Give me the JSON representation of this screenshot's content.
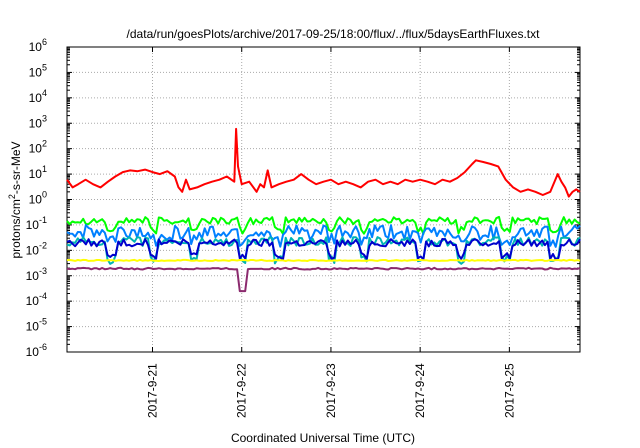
{
  "chart_data": {
    "type": "line",
    "title": "/data/run/goesPlots/archive/2017-09-25/18:00/flux/../flux/5daysEarthFluxes.txt",
    "xlabel": "Coordinated Universal Time (UTC)",
    "ylabel": {
      "prefix": "protons/cm",
      "sup": "2",
      "suffix": "-s-sr-MeV"
    },
    "x_range": [
      "2017-09-20T01:00",
      "2017-09-25T19:00"
    ],
    "x_ticks": [
      "2017-9-21",
      "2017-9-22",
      "2017-9-23",
      "2017-9-24",
      "2017-9-25"
    ],
    "y_scale": "log",
    "ylim": [
      1e-06,
      1000000.0
    ],
    "y_tick_exponents": [
      -6,
      -5,
      -4,
      -3,
      -2,
      -1,
      0,
      1,
      2,
      3,
      4,
      5,
      6
    ],
    "grid": true,
    "series": [
      {
        "color": "#ff0000",
        "points": [
          [
            "2017-09-20T01:00",
            6
          ],
          [
            "2017-09-20T02:30",
            3
          ],
          [
            "2017-09-20T04:00",
            4
          ],
          [
            "2017-09-20T06:00",
            6
          ],
          [
            "2017-09-20T08:00",
            4
          ],
          [
            "2017-09-20T10:00",
            3
          ],
          [
            "2017-09-20T12:00",
            5
          ],
          [
            "2017-09-20T14:00",
            8
          ],
          [
            "2017-09-20T16:00",
            12
          ],
          [
            "2017-09-20T18:00",
            14
          ],
          [
            "2017-09-20T20:00",
            13
          ],
          [
            "2017-09-20T22:00",
            15
          ],
          [
            "2017-09-21T00:00",
            12
          ],
          [
            "2017-09-21T02:00",
            10
          ],
          [
            "2017-09-21T04:00",
            13
          ],
          [
            "2017-09-21T06:00",
            8
          ],
          [
            "2017-09-21T07:00",
            3
          ],
          [
            "2017-09-21T08:00",
            2
          ],
          [
            "2017-09-21T09:00",
            6
          ],
          [
            "2017-09-21T10:00",
            2.5
          ],
          [
            "2017-09-21T12:00",
            3
          ],
          [
            "2017-09-21T14:00",
            4
          ],
          [
            "2017-09-21T16:00",
            5
          ],
          [
            "2017-09-21T18:00",
            6
          ],
          [
            "2017-09-21T20:00",
            8
          ],
          [
            "2017-09-21T22:00",
            5
          ],
          [
            "2017-09-21T22:30",
            600
          ],
          [
            "2017-09-21T23:00",
            20
          ],
          [
            "2017-09-22T00:00",
            4
          ],
          [
            "2017-09-22T02:00",
            5
          ],
          [
            "2017-09-22T04:00",
            2
          ],
          [
            "2017-09-22T05:00",
            4
          ],
          [
            "2017-09-22T06:00",
            3
          ],
          [
            "2017-09-22T07:00",
            14
          ],
          [
            "2017-09-22T08:00",
            3
          ],
          [
            "2017-09-22T10:00",
            4
          ],
          [
            "2017-09-22T12:00",
            5
          ],
          [
            "2017-09-22T14:00",
            6
          ],
          [
            "2017-09-22T16:00",
            10
          ],
          [
            "2017-09-22T18:00",
            6
          ],
          [
            "2017-09-22T20:00",
            4
          ],
          [
            "2017-09-22T22:00",
            5
          ],
          [
            "2017-09-23T00:00",
            6
          ],
          [
            "2017-09-23T02:00",
            4
          ],
          [
            "2017-09-23T04:00",
            5
          ],
          [
            "2017-09-23T06:00",
            4
          ],
          [
            "2017-09-23T08:00",
            3
          ],
          [
            "2017-09-23T10:00",
            5
          ],
          [
            "2017-09-23T12:00",
            6
          ],
          [
            "2017-09-23T14:00",
            4
          ],
          [
            "2017-09-23T16:00",
            5
          ],
          [
            "2017-09-23T18:00",
            4
          ],
          [
            "2017-09-23T20:00",
            6
          ],
          [
            "2017-09-23T22:00",
            5
          ],
          [
            "2017-09-24T00:00",
            6
          ],
          [
            "2017-09-24T02:00",
            5
          ],
          [
            "2017-09-24T04:00",
            4
          ],
          [
            "2017-09-24T06:00",
            6
          ],
          [
            "2017-09-24T08:00",
            5
          ],
          [
            "2017-09-24T10:00",
            7
          ],
          [
            "2017-09-24T12:00",
            12
          ],
          [
            "2017-09-24T14:00",
            25
          ],
          [
            "2017-09-24T15:00",
            35
          ],
          [
            "2017-09-24T17:00",
            30
          ],
          [
            "2017-09-24T19:00",
            25
          ],
          [
            "2017-09-24T21:00",
            20
          ],
          [
            "2017-09-24T23:00",
            6
          ],
          [
            "2017-09-25T01:00",
            3
          ],
          [
            "2017-09-25T03:00",
            2
          ],
          [
            "2017-09-25T05:00",
            2.5
          ],
          [
            "2017-09-25T07:00",
            2
          ],
          [
            "2017-09-25T09:00",
            1.5
          ],
          [
            "2017-09-25T11:00",
            2
          ],
          [
            "2017-09-25T13:00",
            10
          ],
          [
            "2017-09-25T14:00",
            5
          ],
          [
            "2017-09-25T15:00",
            3
          ],
          [
            "2017-09-25T16:00",
            1.3
          ],
          [
            "2017-09-25T17:00",
            2
          ],
          [
            "2017-09-25T18:00",
            2.5
          ],
          [
            "2017-09-25T19:00",
            2
          ]
        ]
      },
      {
        "color": "#00ff00",
        "base": 0.15,
        "amp": 1.4,
        "dips": 0.4
      },
      {
        "color": "#0080ff",
        "base": 0.05,
        "amp": 2.0,
        "dips": 0.5
      },
      {
        "color": "#00b4b4",
        "base": 0.022,
        "amp": 1.5,
        "dips": 0.2
      },
      {
        "color": "#0000cc",
        "base": 0.02,
        "amp": 1.4,
        "dips": 0.3
      },
      {
        "color": "#ffff00",
        "base": 0.004,
        "amp": 1.05,
        "dips": 0.0
      },
      {
        "color": "#8b2a6e",
        "base": 0.0019,
        "amp": 1.08,
        "dips": 0.0,
        "spike": [
          "2017-09-22T00:00",
          0.00025
        ]
      }
    ],
    "dip_times": [
      "2017-09-20T13:00",
      "2017-09-21T00:00",
      "2017-09-21T11:00",
      "2017-09-22T00:00",
      "2017-09-22T10:00",
      "2017-09-23T00:00",
      "2017-09-23T09:00",
      "2017-09-24T00:00",
      "2017-09-24T11:00",
      "2017-09-24T23:00",
      "2017-09-25T12:00"
    ]
  }
}
